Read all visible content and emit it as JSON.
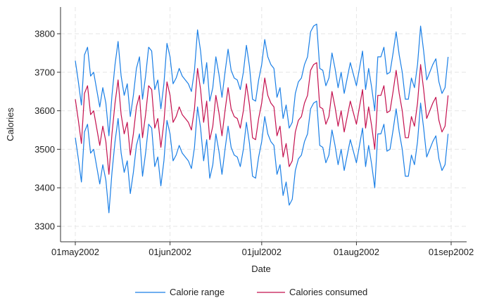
{
  "chart_data": {
    "type": "line",
    "xlabel": "Date",
    "ylabel": "Calories",
    "x_start": "2002-05-01",
    "x_end": "2002-08-31",
    "xlim": [
      "2002-05-01",
      "2002-09-01"
    ],
    "ylim": [
      3280,
      3850
    ],
    "x_ticks": [
      {
        "date": "2002-05-01",
        "label": "01may2002"
      },
      {
        "date": "2002-06-01",
        "label": "01jun2002"
      },
      {
        "date": "2002-07-01",
        "label": "01jul2002"
      },
      {
        "date": "2002-08-01",
        "label": "01aug2002"
      },
      {
        "date": "2002-09-01",
        "label": "01sep2002"
      }
    ],
    "y_ticks": [
      3300,
      3400,
      3500,
      3600,
      3700,
      3800
    ],
    "grid": true,
    "legend_position": "bottom",
    "series": [
      {
        "name": "Calorie range",
        "kind": "band",
        "color": "#1a7fe6",
        "upper_offset": 100,
        "lower_offset": -100
      },
      {
        "name": "Calories consumed",
        "kind": "line",
        "color": "#c4104e",
        "values": [
          3630,
          3575,
          3515,
          3645,
          3665,
          3590,
          3600,
          3555,
          3510,
          3560,
          3520,
          3435,
          3540,
          3620,
          3680,
          3590,
          3540,
          3570,
          3485,
          3540,
          3610,
          3640,
          3530,
          3590,
          3665,
          3655,
          3555,
          3580,
          3505,
          3570,
          3675,
          3640,
          3570,
          3585,
          3610,
          3590,
          3580,
          3570,
          3550,
          3605,
          3710,
          3655,
          3570,
          3625,
          3525,
          3560,
          3640,
          3595,
          3535,
          3600,
          3660,
          3605,
          3585,
          3580,
          3555,
          3600,
          3670,
          3615,
          3530,
          3525,
          3580,
          3620,
          3685,
          3640,
          3620,
          3610,
          3535,
          3560,
          3480,
          3515,
          3455,
          3470,
          3545,
          3575,
          3585,
          3620,
          3640,
          3705,
          3720,
          3725,
          3610,
          3605,
          3565,
          3585,
          3650,
          3610,
          3560,
          3600,
          3545,
          3585,
          3625,
          3595,
          3565,
          3610,
          3655,
          3555,
          3610,
          3560,
          3500,
          3640,
          3640,
          3665,
          3595,
          3600,
          3650,
          3705,
          3645,
          3600,
          3530,
          3530,
          3585,
          3560,
          3620,
          3720,
          3655,
          3580,
          3600,
          3620,
          3635,
          3575,
          3545,
          3560,
          3640
        ]
      }
    ]
  }
}
